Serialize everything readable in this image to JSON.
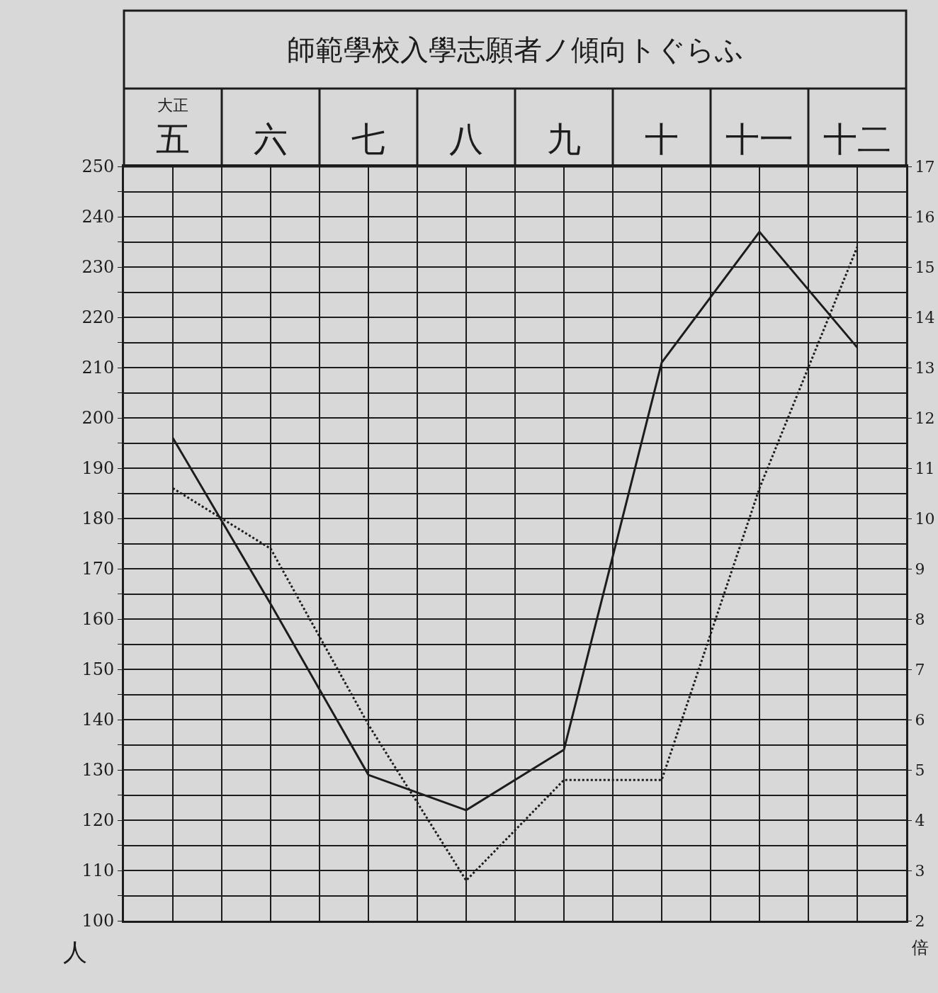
{
  "chart_data": {
    "type": "line",
    "title": "師範學校入學志願者ノ傾向トぐらふ",
    "xlabel": "大正",
    "ylabel": "人",
    "y2label": "倍",
    "categories": [
      "五",
      "六",
      "七",
      "八",
      "九",
      "十",
      "十一",
      "十二"
    ],
    "series": [
      {
        "color": "#1c1c1c",
        "line_style": "solid",
        "values": [
          196,
          163,
          129,
          122,
          134,
          211,
          237,
          214
        ]
      },
      {
        "color": "#1c1c1c",
        "line_style": "dotted",
        "axis": "y2",
        "values": [
          10.6,
          9.4,
          5.9,
          2.8,
          4.8,
          4.8,
          10.6,
          15.4
        ]
      }
    ],
    "ylim": [
      100,
      250
    ],
    "yticks": [
      100,
      {
        "value": 105,
        "label": null
      },
      110,
      {
        "value": 115,
        "label": null
      },
      120,
      {
        "value": 125,
        "label": null
      },
      130,
      {
        "value": 135,
        "label": null
      },
      140,
      {
        "value": 145,
        "label": null
      },
      150,
      {
        "value": 155,
        "label": null
      },
      160,
      {
        "value": 165,
        "label": null
      },
      170,
      {
        "value": 175,
        "label": null
      },
      180,
      {
        "value": 185,
        "label": null
      },
      190,
      {
        "value": 195,
        "label": null
      },
      200,
      {
        "value": 205,
        "label": null
      },
      210,
      {
        "value": 215,
        "label": null
      },
      220,
      {
        "value": 225,
        "label": null
      },
      230,
      {
        "value": 235,
        "label": null
      },
      240,
      {
        "value": 245,
        "label": null
      },
      250
    ],
    "y2lim": [
      2,
      17
    ],
    "y2ticks": [
      2,
      3,
      4,
      5,
      6,
      7,
      8,
      9,
      10,
      11,
      12,
      13,
      14,
      15,
      16,
      17
    ],
    "grid": true
  }
}
